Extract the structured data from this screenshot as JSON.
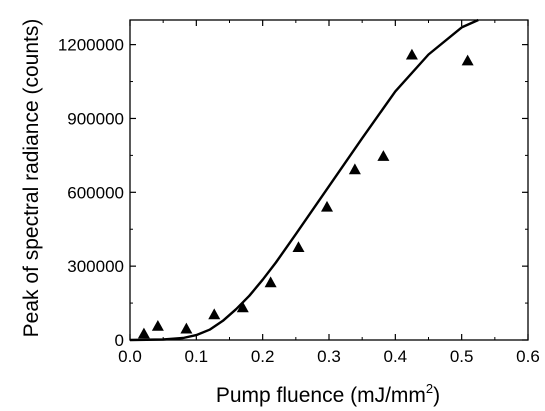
{
  "chart_data": {
    "type": "scatter",
    "xlabel": "Pump fluence (mJ/mm",
    "xlabel_superscript": "2",
    "xlabel_suffix": ")",
    "ylabel": "Peak of spectral radiance (counts)",
    "xlim": [
      0.0,
      0.6
    ],
    "ylim": [
      0,
      1300000
    ],
    "x_ticks": [
      0.0,
      0.1,
      0.2,
      0.3,
      0.4,
      0.5,
      0.6
    ],
    "x_tick_labels": [
      "0.0",
      "0.1",
      "0.2",
      "0.3",
      "0.4",
      "0.5",
      "0.6"
    ],
    "y_ticks": [
      0,
      300000,
      600000,
      900000,
      1200000
    ],
    "y_tick_labels": [
      "0",
      "300000",
      "600000",
      "900000",
      "1200000"
    ],
    "grid": false,
    "series": [
      {
        "marker": "triangle",
        "color": "#000000",
        "points": [
          {
            "x": 0.021,
            "y": 26000
          },
          {
            "x": 0.042,
            "y": 57000
          },
          {
            "x": 0.085,
            "y": 46000
          },
          {
            "x": 0.127,
            "y": 104000
          },
          {
            "x": 0.17,
            "y": 132000
          },
          {
            "x": 0.212,
            "y": 234000
          },
          {
            "x": 0.254,
            "y": 377000
          },
          {
            "x": 0.297,
            "y": 541000
          },
          {
            "x": 0.339,
            "y": 693000
          },
          {
            "x": 0.382,
            "y": 747000
          },
          {
            "x": 0.425,
            "y": 1159000
          },
          {
            "x": 0.509,
            "y": 1135000
          }
        ]
      },
      {
        "type": "line",
        "color": "#000000",
        "points": [
          {
            "x": 0.0,
            "y": 0
          },
          {
            "x": 0.05,
            "y": 2000
          },
          {
            "x": 0.08,
            "y": 8000
          },
          {
            "x": 0.1,
            "y": 20000
          },
          {
            "x": 0.12,
            "y": 42000
          },
          {
            "x": 0.14,
            "y": 78000
          },
          {
            "x": 0.16,
            "y": 125000
          },
          {
            "x": 0.18,
            "y": 180000
          },
          {
            "x": 0.2,
            "y": 245000
          },
          {
            "x": 0.22,
            "y": 315000
          },
          {
            "x": 0.25,
            "y": 430000
          },
          {
            "x": 0.3,
            "y": 625000
          },
          {
            "x": 0.35,
            "y": 820000
          },
          {
            "x": 0.4,
            "y": 1010000
          },
          {
            "x": 0.45,
            "y": 1160000
          },
          {
            "x": 0.5,
            "y": 1270000
          },
          {
            "x": 0.525,
            "y": 1300000
          }
        ]
      }
    ]
  }
}
